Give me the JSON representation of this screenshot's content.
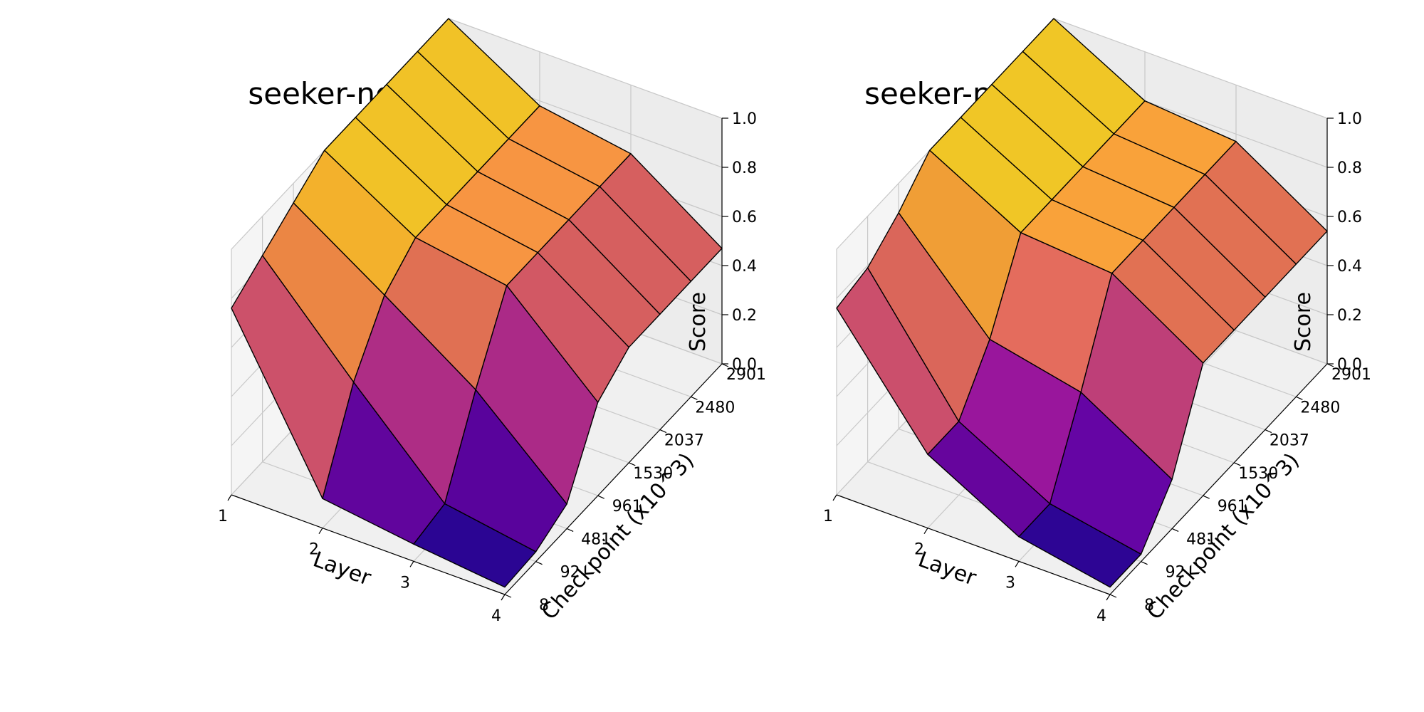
{
  "chart_data": [
    {
      "type": "surface3d",
      "title": "seeker-not-exist - seeker",
      "xlabel": "Layer",
      "ylabel": "Checkpoint (x10^3)",
      "zlabel": "Score",
      "x_ticks": [
        "1",
        "2",
        "3",
        "4"
      ],
      "y_ticks": [
        "8",
        "92",
        "481",
        "961",
        "1530",
        "2037",
        "2480",
        "2901"
      ],
      "z_ticks": [
        "0.0",
        "0.2",
        "0.4",
        "0.6",
        "0.8",
        "1.0"
      ],
      "zlim": [
        0,
        1
      ],
      "colormap": "plasma",
      "z": [
        [
          0.76,
          0.12,
          0.07,
          0.03
        ],
        [
          0.84,
          0.46,
          0.1,
          0.04
        ],
        [
          0.92,
          0.68,
          0.43,
          0.1
        ],
        [
          1.0,
          0.78,
          0.72,
          0.38
        ],
        [
          1.0,
          0.78,
          0.72,
          0.47
        ],
        [
          1.0,
          0.78,
          0.72,
          0.47
        ],
        [
          1.0,
          0.78,
          0.72,
          0.47
        ],
        [
          1.0,
          0.78,
          0.72,
          0.47
        ]
      ]
    },
    {
      "type": "surface3d",
      "title": "seeker-not-exist - hider",
      "xlabel": "Layer",
      "ylabel": "Checkpoint (x10^3)",
      "zlabel": "Score",
      "x_ticks": [
        "1",
        "2",
        "3",
        "4"
      ],
      "y_ticks": [
        "8",
        "92",
        "481",
        "961",
        "1530",
        "2037",
        "2480",
        "2901"
      ],
      "z_ticks": [
        "0.0",
        "0.2",
        "0.4",
        "0.6",
        "0.8",
        "1.0"
      ],
      "zlim": [
        0,
        1
      ],
      "colormap": "plasma",
      "z": [
        [
          0.76,
          0.3,
          0.1,
          0.03
        ],
        [
          0.79,
          0.3,
          0.1,
          0.03
        ],
        [
          0.88,
          0.5,
          0.42,
          0.2
        ],
        [
          1.0,
          0.8,
          0.77,
          0.54
        ],
        [
          1.0,
          0.8,
          0.77,
          0.54
        ],
        [
          1.0,
          0.8,
          0.77,
          0.54
        ],
        [
          1.0,
          0.8,
          0.77,
          0.54
        ],
        [
          1.0,
          0.8,
          0.77,
          0.54
        ]
      ]
    }
  ]
}
